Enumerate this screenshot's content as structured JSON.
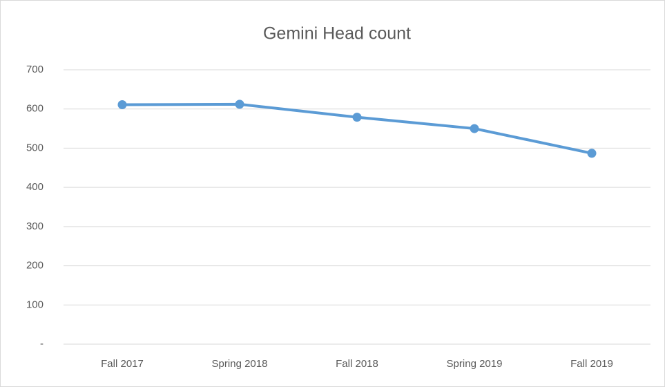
{
  "chart_data": {
    "type": "line",
    "title": "Gemini Head count",
    "categories": [
      "Fall 2017",
      "Spring 2018",
      "Fall 2018",
      "Spring 2019",
      "Fall 2019"
    ],
    "series": [
      {
        "name": "Head count",
        "color": "#5b9bd5",
        "values": [
          611,
          612,
          579,
          550,
          487
        ]
      }
    ],
    "ylim": [
      0,
      700
    ],
    "yticks": [
      {
        "value": 0,
        "label": "-"
      },
      100,
      200,
      300,
      400,
      500,
      600,
      700
    ],
    "grid": true
  }
}
